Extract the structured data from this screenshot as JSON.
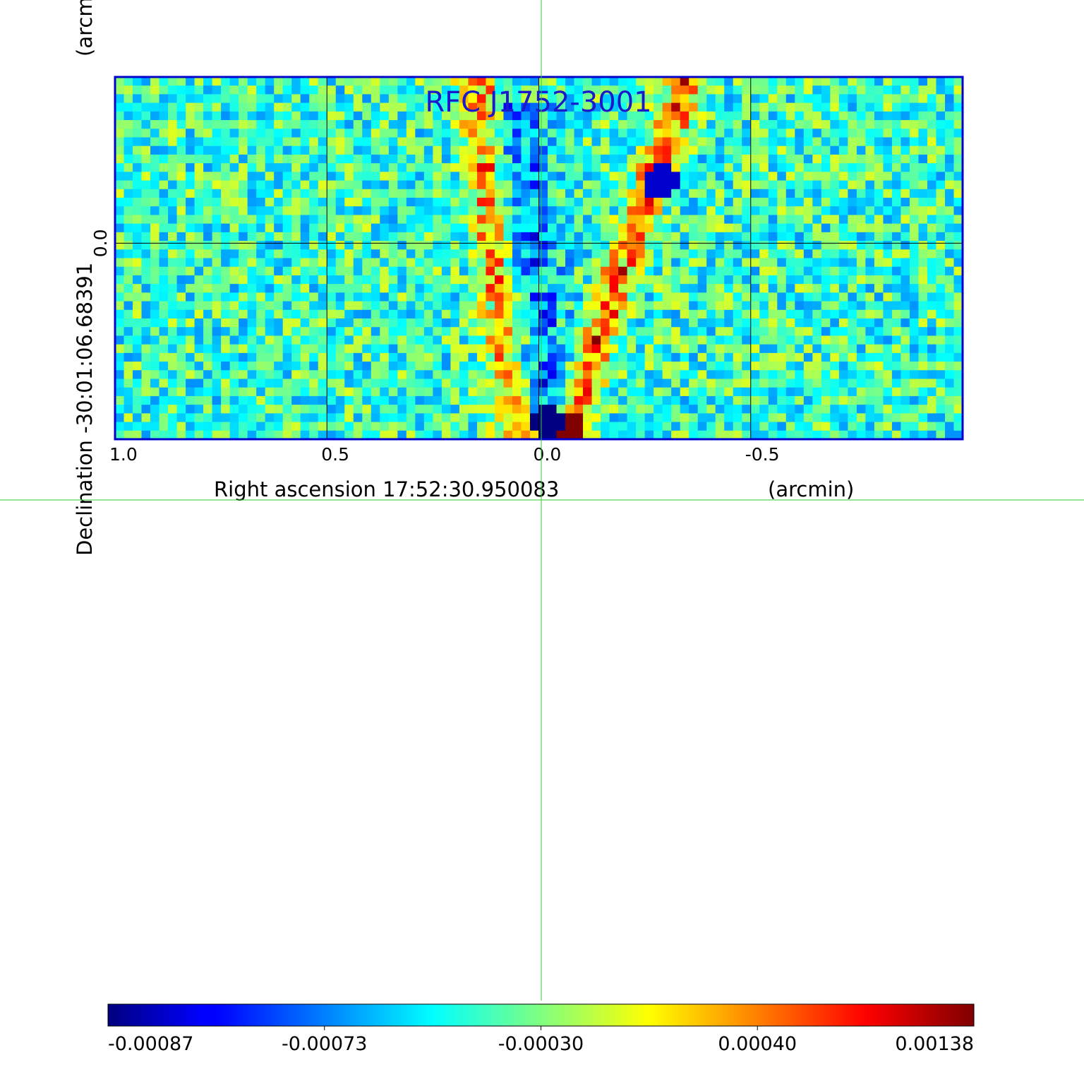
{
  "chart_data": {
    "type": "heatmap",
    "title": "RFC J1752-3001",
    "xlabel": "Right ascension  17:52:30.950083",
    "xlabel_unit": "(arcmin)",
    "ylabel": "Declination  -30:01:06.68391",
    "ylabel_unit": "(arcmin)",
    "xlim": [
      1.0,
      -1.0
    ],
    "ylim": [
      -0.46,
      0.39
    ],
    "x_ticks": [
      {
        "value": 1.0,
        "label": "1.0"
      },
      {
        "value": 0.5,
        "label": "0.5"
      },
      {
        "value": 0.0,
        "label": "0.0"
      },
      {
        "value": -0.5,
        "label": "-0.5"
      }
    ],
    "y_ticks": [
      {
        "value": 0.0,
        "label": "0.0"
      }
    ],
    "grid": true,
    "colorbar": {
      "colormap": "jet",
      "vmin": -0.00087,
      "vmax": 0.00138,
      "tick_labels": [
        "-0.00087",
        "-0.00073",
        "-0.00030",
        "0.00040",
        "0.00138"
      ]
    },
    "features": [
      {
        "kind": "ridge",
        "from": [
          0.15,
          0.39
        ],
        "to": [
          0.05,
          -0.46
        ],
        "level": 0.0011
      },
      {
        "kind": "ridge",
        "from": [
          -0.35,
          0.39
        ],
        "to": [
          -0.06,
          -0.46
        ],
        "level": 0.0011
      },
      {
        "kind": "trough",
        "from": [
          0.05,
          0.3
        ],
        "to": [
          -0.02,
          -0.46
        ],
        "level": -0.0004
      },
      {
        "kind": "peak",
        "at": [
          -0.06,
          -0.43
        ],
        "level": 0.00138
      },
      {
        "kind": "min",
        "at": [
          -0.02,
          -0.42
        ],
        "level": -0.00087
      },
      {
        "kind": "min",
        "at": [
          -0.29,
          0.14
        ],
        "level": -0.0007
      }
    ],
    "colors": {
      "frame": "#0000cc",
      "title": "#1a1acc",
      "grid": "#000000",
      "crosshair": "#33cc33"
    }
  }
}
